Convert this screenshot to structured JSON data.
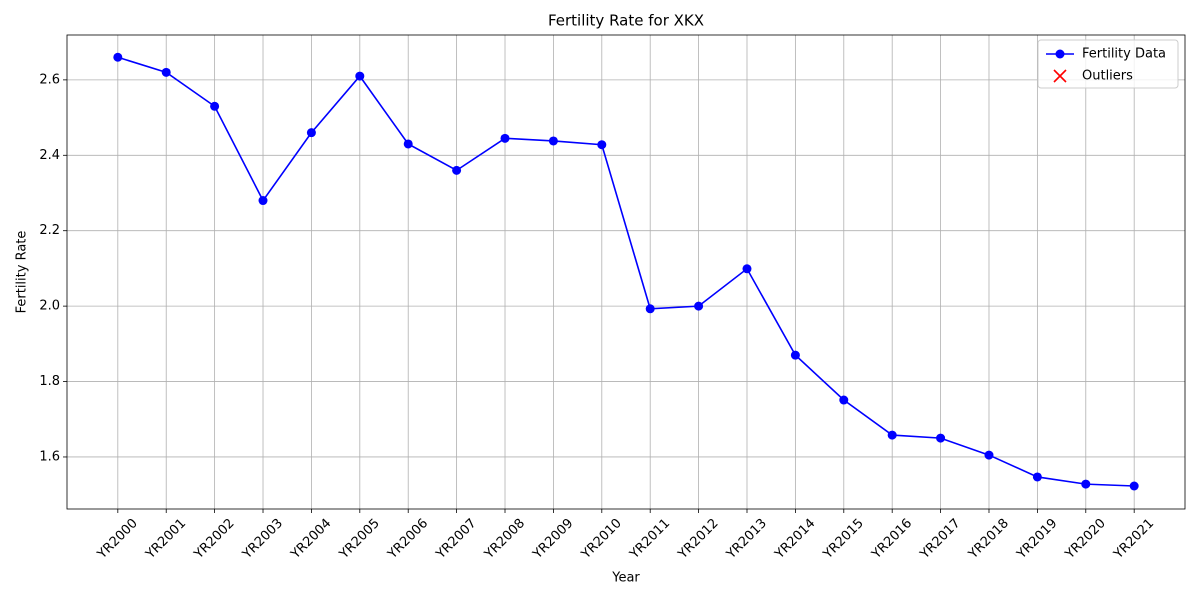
{
  "chart_data": {
    "type": "line",
    "title": "Fertility Rate for XKX",
    "x_label": "Year",
    "y_label": "Fertility Rate",
    "categories": [
      "YR2000",
      "YR2001",
      "YR2002",
      "YR2003",
      "YR2004",
      "YR2005",
      "YR2006",
      "YR2007",
      "YR2008",
      "YR2009",
      "YR2010",
      "YR2011",
      "YR2012",
      "YR2013",
      "YR2014",
      "YR2015",
      "YR2016",
      "YR2017",
      "YR2018",
      "YR2019",
      "YR2020",
      "YR2021"
    ],
    "series": [
      {
        "name": "Fertility Data",
        "color": "#0000ff",
        "marker": "o",
        "values": [
          2.66,
          2.62,
          2.53,
          2.28,
          2.46,
          2.61,
          2.43,
          2.36,
          2.445,
          2.438,
          2.428,
          1.993,
          2.0,
          2.099,
          1.87,
          1.751,
          1.658,
          1.65,
          1.605,
          1.547,
          1.528,
          1.523
        ]
      },
      {
        "name": "Outliers",
        "color": "#ff0000",
        "marker": "x",
        "values": [
          null,
          null,
          null,
          null,
          null,
          null,
          null,
          null,
          null,
          null,
          null,
          null,
          null,
          null,
          null,
          null,
          null,
          null,
          null,
          null,
          null,
          null
        ]
      }
    ],
    "ylim": [
      1.462,
      2.719
    ],
    "yticks": [
      1.6,
      1.8,
      {
        "value": 2.0,
        "label": "2.0"
      },
      2.2,
      2.4,
      2.6
    ],
    "grid": true,
    "legend": "upper right"
  }
}
